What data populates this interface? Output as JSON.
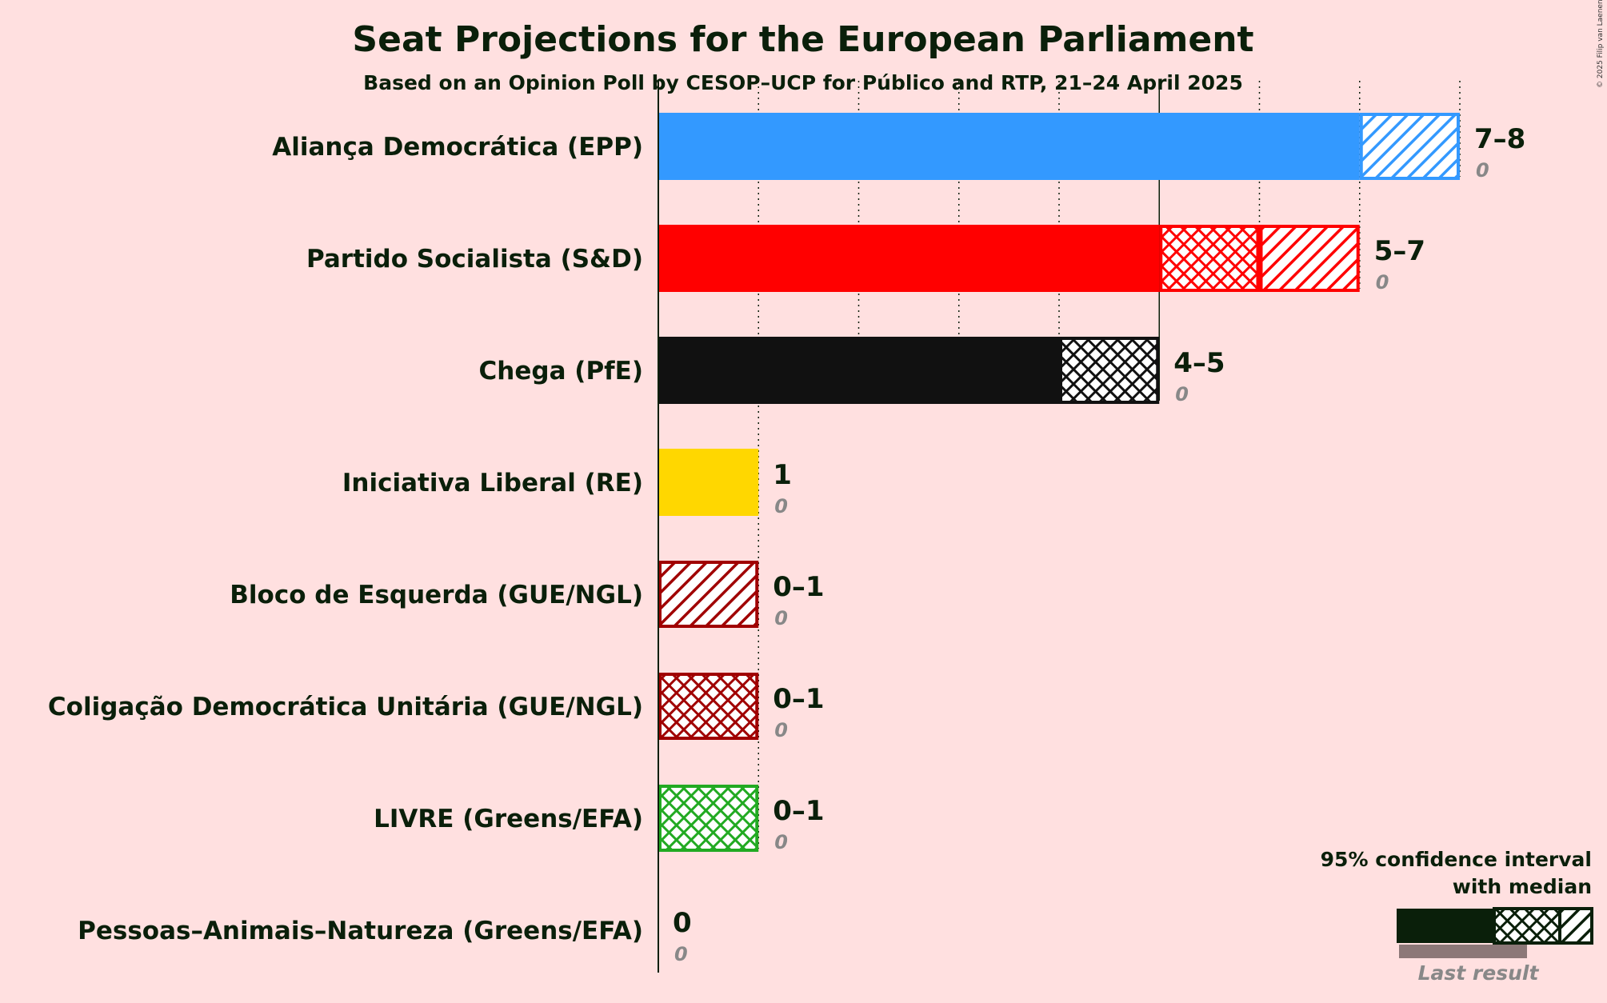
{
  "chart_data": {
    "type": "bar",
    "orientation": "horizontal",
    "title": "Seat Projections for the European Parliament",
    "subtitle": "Based on an Opinion Poll by CESOP–UCP for Público and RTP, 21–24 April 2025",
    "copyright": "© 2025 Filip van Laenen",
    "xlim": [
      0,
      8
    ],
    "parties": [
      {
        "name": "Aliança Democrática (EPP)",
        "low": 7,
        "median": 7,
        "high": 8,
        "last": 0,
        "range_label": "7–8",
        "last_label": "0",
        "color": "#3399ff"
      },
      {
        "name": "Partido Socialista (S&D)",
        "low": 5,
        "median": 6,
        "high": 7,
        "last": 0,
        "range_label": "5–7",
        "last_label": "0",
        "color": "#ff0000"
      },
      {
        "name": "Chega (PfE)",
        "low": 4,
        "median": 5,
        "high": 5,
        "last": 0,
        "range_label": "4–5",
        "last_label": "0",
        "color": "#111111"
      },
      {
        "name": "Iniciativa Liberal (RE)",
        "low": 1,
        "median": 1,
        "high": 1,
        "last": 0,
        "range_label": "1",
        "last_label": "0",
        "color": "#ffd700"
      },
      {
        "name": "Bloco de Esquerda (GUE/NGL)",
        "low": 0,
        "median": 0,
        "high": 1,
        "last": 0,
        "range_label": "0–1",
        "last_label": "0",
        "color": "#a00000"
      },
      {
        "name": "Coligação Democrática Unitária (GUE/NGL)",
        "low": 0,
        "median": 1,
        "high": 1,
        "last": 0,
        "range_label": "0–1",
        "last_label": "0",
        "color": "#a00000"
      },
      {
        "name": "LIVRE (Greens/EFA)",
        "low": 0,
        "median": 1,
        "high": 1,
        "last": 0,
        "range_label": "0–1",
        "last_label": "0",
        "color": "#22aa22"
      },
      {
        "name": "Pessoas–Animais–Natureza (Greens/EFA)",
        "low": 0,
        "median": 0,
        "high": 0,
        "last": 0,
        "range_label": "0",
        "last_label": "0",
        "color": "#006600"
      }
    ],
    "legend": {
      "line1": "95% confidence interval",
      "line2": "with median",
      "last_result": "Last result",
      "position": "bottom-right"
    }
  }
}
